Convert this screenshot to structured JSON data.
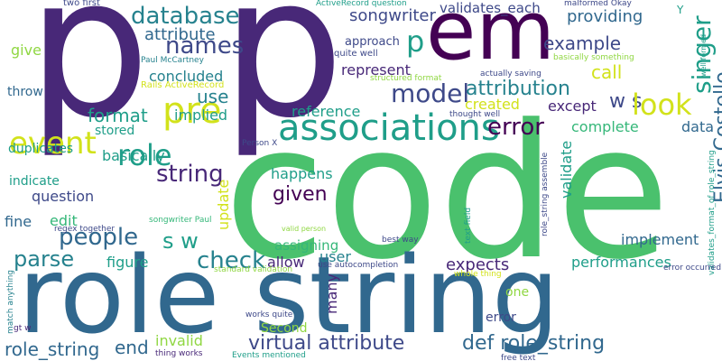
{
  "colors": {
    "purple_dark": "#440154",
    "purple": "#482878",
    "indigo": "#3e4989",
    "blue": "#31688e",
    "teal_blue": "#26828e",
    "teal": "#1f9e89",
    "green": "#35b779",
    "green_light": "#4ac16d",
    "lime": "#90d743",
    "yellow": "#d2e21b"
  },
  "words": [
    {
      "id": "p1",
      "text": "p",
      "color": "purple"
    },
    {
      "id": "p2",
      "text": "p",
      "color": "purple"
    },
    {
      "id": "code",
      "text": "code",
      "color": "green_light"
    },
    {
      "id": "role_string_big",
      "text": "role string",
      "color": "blue"
    },
    {
      "id": "em",
      "text": "em",
      "color": "purple_dark"
    },
    {
      "id": "associations",
      "text": "associations",
      "color": "teal"
    },
    {
      "id": "database",
      "text": "database",
      "color": "teal_blue"
    },
    {
      "id": "names",
      "text": "names",
      "color": "indigo"
    },
    {
      "id": "attribute",
      "text": "attribute",
      "color": "blue"
    },
    {
      "id": "songwriter",
      "text": "songwriter",
      "color": "indigo"
    },
    {
      "id": "validates_each",
      "text": "validates_each",
      "color": "indigo"
    },
    {
      "id": "providing",
      "text": "providing",
      "color": "blue"
    },
    {
      "id": "p_small",
      "text": "p",
      "color": "teal"
    },
    {
      "id": "example",
      "text": "example",
      "color": "indigo"
    },
    {
      "id": "w_s",
      "text": "w s",
      "color": "indigo"
    },
    {
      "id": "model",
      "text": "model",
      "color": "indigo"
    },
    {
      "id": "attribution",
      "text": "attribution",
      "color": "teal_blue"
    },
    {
      "id": "look",
      "text": "look",
      "color": "yellow"
    },
    {
      "id": "singer",
      "text": "singer",
      "color": "teal"
    },
    {
      "id": "elvis_costello",
      "text": "Elvis Costello",
      "color": "blue"
    },
    {
      "id": "pre",
      "text": "pre",
      "color": "yellow"
    },
    {
      "id": "event",
      "text": "event",
      "color": "yellow"
    },
    {
      "id": "role",
      "text": "role",
      "color": "teal"
    },
    {
      "id": "string",
      "text": "string",
      "color": "purple"
    },
    {
      "id": "people",
      "text": "people",
      "color": "blue"
    },
    {
      "id": "s_w",
      "text": "s w",
      "color": "teal"
    },
    {
      "id": "given",
      "text": "given",
      "color": "purple_dark"
    },
    {
      "id": "check",
      "text": "check",
      "color": "teal_blue"
    },
    {
      "id": "parse",
      "text": "parse",
      "color": "teal_blue"
    },
    {
      "id": "virtual_attribute",
      "text": "virtual attribute",
      "color": "indigo"
    },
    {
      "id": "def_role_string",
      "text": "def role_string",
      "color": "blue"
    },
    {
      "id": "role_string_small",
      "text": "role_string",
      "color": "blue"
    },
    {
      "id": "end",
      "text": "end",
      "color": "blue"
    },
    {
      "id": "use",
      "text": "use",
      "color": "teal_blue"
    },
    {
      "id": "concluded",
      "text": "concluded",
      "color": "teal_blue"
    },
    {
      "id": "represent",
      "text": "represent",
      "color": "purple"
    },
    {
      "id": "call",
      "text": "call",
      "color": "yellow"
    },
    {
      "id": "format",
      "text": "format",
      "color": "teal"
    },
    {
      "id": "implied",
      "text": "implied",
      "color": "teal"
    },
    {
      "id": "reference",
      "text": "reference",
      "color": "teal"
    },
    {
      "id": "created",
      "text": "created",
      "color": "yellow"
    },
    {
      "id": "except",
      "text": "except",
      "color": "purple"
    },
    {
      "id": "complete",
      "text": "complete",
      "color": "green"
    },
    {
      "id": "data",
      "text": "data",
      "color": "blue"
    },
    {
      "id": "stored",
      "text": "stored",
      "color": "teal"
    },
    {
      "id": "basically",
      "text": "basically",
      "color": "teal"
    },
    {
      "id": "error_big",
      "text": "error",
      "color": "purple_dark"
    },
    {
      "id": "validate",
      "text": "validate",
      "color": "teal"
    },
    {
      "id": "implement",
      "text": "implement",
      "color": "blue"
    },
    {
      "id": "happens",
      "text": "happens",
      "color": "teal"
    },
    {
      "id": "assigning",
      "text": "assigning",
      "color": "green"
    },
    {
      "id": "update",
      "text": "update",
      "color": "yellow"
    },
    {
      "id": "duplicates",
      "text": "duplicates",
      "color": "teal"
    },
    {
      "id": "indicate",
      "text": "indicate",
      "color": "teal"
    },
    {
      "id": "question",
      "text": "question",
      "color": "indigo"
    },
    {
      "id": "fine",
      "text": "fine",
      "color": "blue"
    },
    {
      "id": "edit",
      "text": "edit",
      "color": "green"
    },
    {
      "id": "figure",
      "text": "figure",
      "color": "teal"
    },
    {
      "id": "allow",
      "text": "allow",
      "color": "purple"
    },
    {
      "id": "user",
      "text": "user",
      "color": "teal_blue"
    },
    {
      "id": "expects",
      "text": "expects",
      "color": "purple"
    },
    {
      "id": "performances",
      "text": "performances",
      "color": "teal"
    },
    {
      "id": "many",
      "text": "many",
      "color": "purple"
    },
    {
      "id": "invalid",
      "text": "invalid",
      "color": "lime"
    },
    {
      "id": "give",
      "text": "give",
      "color": "lime"
    },
    {
      "id": "throw",
      "text": "throw",
      "color": "blue"
    },
    {
      "id": "error_small",
      "text": "error",
      "color": "indigo"
    },
    {
      "id": "one",
      "text": "one",
      "color": "lime"
    },
    {
      "id": "second",
      "text": "Second",
      "color": "lime"
    },
    {
      "id": "two_first",
      "text": "two first",
      "color": "indigo"
    },
    {
      "id": "activerecord_question",
      "text": "ActiveRecord question",
      "color": "teal"
    },
    {
      "id": "malformed_okay",
      "text": "malformed Okay",
      "color": "indigo"
    },
    {
      "id": "y",
      "text": "Y",
      "color": "teal"
    },
    {
      "id": "approach",
      "text": "approach",
      "color": "indigo"
    },
    {
      "id": "quite_well",
      "text": "quite well",
      "color": "indigo"
    },
    {
      "id": "structured_format",
      "text": "structured format",
      "color": "lime"
    },
    {
      "id": "basically_something",
      "text": "basically something",
      "color": "lime"
    },
    {
      "id": "actually_saving",
      "text": "actually saving",
      "color": "indigo"
    },
    {
      "id": "well_formed",
      "text": "well formed",
      "color": "teal"
    },
    {
      "id": "validates_format",
      "text": "validates_format_of role_string",
      "color": "teal"
    },
    {
      "id": "paul_mccartney",
      "text": "Paul McCartney",
      "color": "teal_blue"
    },
    {
      "id": "rails_activerecord",
      "text": "Rails ActiveRecord",
      "color": "yellow"
    },
    {
      "id": "thought_well",
      "text": "thought well",
      "color": "indigo"
    },
    {
      "id": "person_x",
      "text": "Person X",
      "color": "indigo"
    },
    {
      "id": "role_string_assemble",
      "text": "role_string assemble",
      "color": "indigo"
    },
    {
      "id": "best_way",
      "text": "best way",
      "color": "indigo"
    },
    {
      "id": "text_field",
      "text": "text field",
      "color": "teal"
    },
    {
      "id": "valid_person",
      "text": "valid person",
      "color": "lime"
    },
    {
      "id": "songwriter_paul",
      "text": "songwriter Paul",
      "color": "green"
    },
    {
      "id": "regex_together",
      "text": "regex together",
      "color": "indigo"
    },
    {
      "id": "whole_thing",
      "text": "whole thing",
      "color": "yellow"
    },
    {
      "id": "standard_validation",
      "text": "standard validation",
      "color": "lime"
    },
    {
      "id": "use_autocompletion",
      "text": "use autocompletion",
      "color": "indigo"
    },
    {
      "id": "error_occurred",
      "text": "error occurred",
      "color": "indigo"
    },
    {
      "id": "match_anything",
      "text": "match anything",
      "color": "teal_blue"
    },
    {
      "id": "works_quite",
      "text": "works quite",
      "color": "indigo"
    },
    {
      "id": "gt_w",
      "text": "gt w",
      "color": "purple"
    },
    {
      "id": "thing_works",
      "text": "thing works",
      "color": "purple"
    },
    {
      "id": "events_mentioned",
      "text": "Events mentioned",
      "color": "teal"
    },
    {
      "id": "free_text",
      "text": "free text",
      "color": "indigo"
    }
  ]
}
